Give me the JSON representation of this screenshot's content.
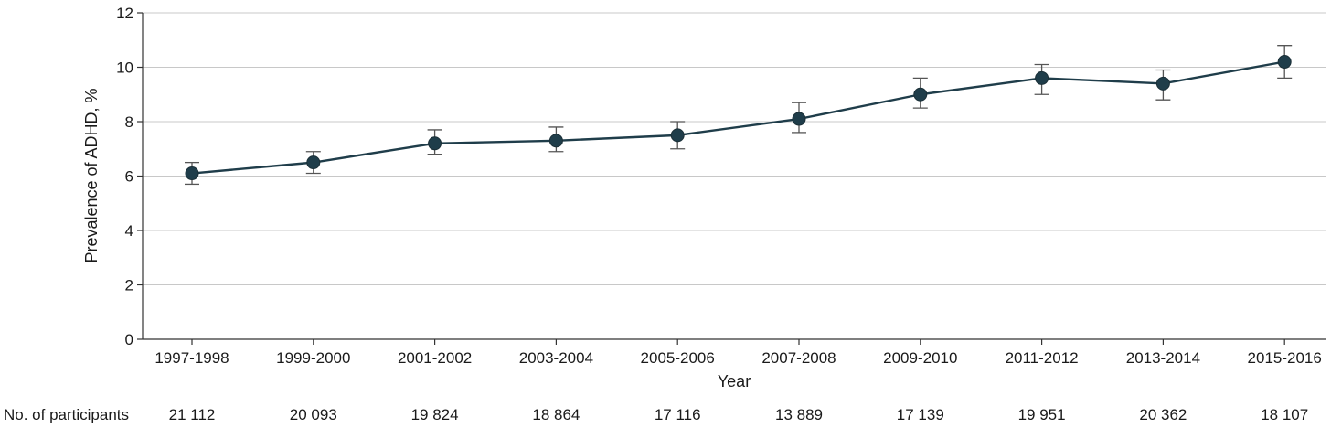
{
  "chart_data": {
    "type": "line",
    "xlabel": "Year",
    "ylabel": "Prevalence of ADHD, %",
    "ylim": [
      0,
      12
    ],
    "yticks": [
      0,
      2,
      4,
      6,
      8,
      10,
      12
    ],
    "grid": true,
    "categories": [
      "1997-1998",
      "1999-2000",
      "2001-2002",
      "2003-2004",
      "2005-2006",
      "2007-2008",
      "2009-2010",
      "2011-2012",
      "2013-2014",
      "2015-2016"
    ],
    "series": [
      {
        "values": [
          6.1,
          6.5,
          7.2,
          7.3,
          7.5,
          8.1,
          9.0,
          9.6,
          9.4,
          10.2
        ],
        "ci_lower": [
          5.7,
          6.1,
          6.8,
          6.9,
          7.0,
          7.6,
          8.5,
          9.0,
          8.8,
          9.6
        ],
        "ci_upper": [
          6.5,
          6.9,
          7.7,
          7.8,
          8.0,
          8.7,
          9.6,
          10.1,
          9.9,
          10.8
        ],
        "color": "#1f3d4a"
      }
    ],
    "participants_label": "No. of participants",
    "participants": [
      "21 112",
      "20 093",
      "19 824",
      "18 864",
      "17 116",
      "13 889",
      "17 139",
      "19 951",
      "20 362",
      "18 107"
    ]
  }
}
